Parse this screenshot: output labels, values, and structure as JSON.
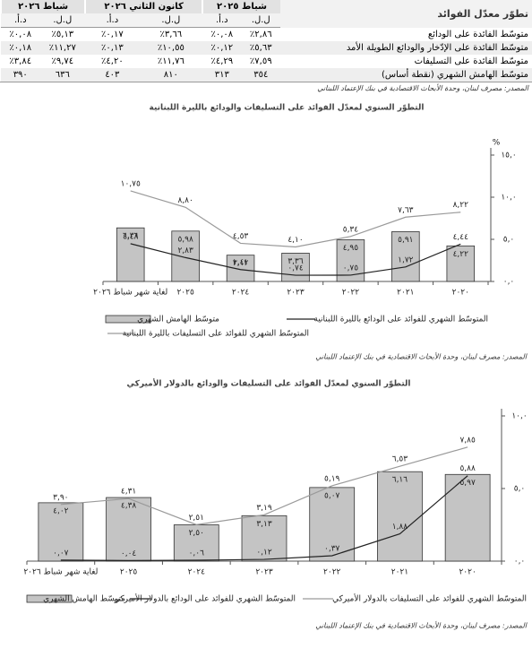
{
  "table": {
    "title": "تطوّر معدّل الفوائد",
    "periods": [
      "شباط ٢٠٢٥",
      "كانون الثاني ٢٠٢٦",
      "شباط ٢٠٢٦"
    ],
    "subheaders": [
      "ل.ل.",
      "د.أ.",
      "ل.ل.",
      "د.أ.",
      "ل.ل.",
      "د.أ."
    ],
    "rows": [
      [
        "متوسّط الفائدة على الودائع",
        "٢,٨٦٪",
        "٠,٠٨٪",
        "٣,٦٦٪",
        "٠,١٧٪",
        "٥,١٣٪",
        "٠,٠٨٪"
      ],
      [
        "متوسّط الفائدة على الإدّخار والودائع الطويلة الأمد",
        "٥,٦٣٪",
        "٠,١٢٪",
        "١٠,٥٥٪",
        "٠,١٣٪",
        "١١,٢٧٪",
        "٠,١٨٪"
      ],
      [
        "متوسّط الفائدة على التسليفات",
        "٧,٥٩٪",
        "٤,٢٩٪",
        "١١,٧٦٪",
        "٤,٢٠٪",
        "٩,٧٤٪",
        "٣,٨٤٪"
      ],
      [
        "متوسّط الهامش الشهري (نقطة أساس)",
        "٣٥٤",
        "٣١٣",
        "٨١٠",
        "٤٠٣",
        "٦٣٦",
        "٣٩٠"
      ]
    ],
    "source": "المصدر: مصرف لبنان، وحدة الأبحاث الاقتصادية في بنك الإعتماد اللبناني"
  },
  "chart_data": [
    {
      "type": "combo",
      "title": "التطوّر السنوي لمعدّل الفوائد على التسليفات والودائع بالليرة اللبنانية",
      "y_label": "%",
      "categories": [
        "٢٠٢٠",
        "٢٠٢١",
        "٢٠٢٢",
        "٢٠٢٣",
        "٢٠٢٤",
        "٢٠٢٥",
        "لغاية شهر شباط ٢٠٢٦"
      ],
      "series": [
        {
          "name": "متوسّط الهامش الشهري",
          "type": "bar",
          "color": "#c4c4c4",
          "values": [
            4.22,
            5.91,
            4.95,
            3.36,
            3.12,
            5.98,
            6.36
          ],
          "value_labels": [
            "٤,٢٢",
            "٥,٩١",
            "٤,٩٥",
            "٣,٣٦",
            "٣,١٢",
            "٥,٩٨",
            "٦,٣٦"
          ]
        },
        {
          "name": "المتوسّط الشهري للفوائد على الودائع بالليرة اللبنانية",
          "type": "line",
          "color": "#222222",
          "values": [
            4.44,
            1.72,
            0.75,
            0.74,
            1.41,
            2.83,
            4.48
          ],
          "value_labels": [
            "٤,٤٤",
            "١,٧٢",
            "٠,٧٥",
            "٠,٧٤",
            "١,٤١",
            "٢,٨٣",
            "٤,٤٨"
          ]
        },
        {
          "name": "المتوسّط الشهري للفوائد على التسليفات بالليرة اللبنانية",
          "type": "line",
          "color": "#9a9a9a",
          "values": [
            8.22,
            7.63,
            5.34,
            4.1,
            4.53,
            8.8,
            10.75
          ],
          "value_labels": [
            "٨,٢٢",
            "٧,٦٣",
            "٥,٣٤",
            "٤,١٠",
            "٤,٥٣",
            "٨,٨٠",
            "١٠,٧٥"
          ]
        }
      ],
      "ylim": [
        0,
        15
      ],
      "yticks": [
        {
          "value": 0,
          "label": "٠,٠"
        },
        {
          "value": 5,
          "label": "٥,٠"
        },
        {
          "value": 10,
          "label": "١٠,٠"
        },
        {
          "value": 15,
          "label": "١٥,٠"
        }
      ],
      "grid": false,
      "source": "المصدر: مصرف لبنان، وحدة الأبحاث الاقتصادية في بنك الإعتماد اللبناني"
    },
    {
      "type": "combo",
      "title": "التطوّر السنوي لمعدّل الفوائد على التسليفات والودائع بالدولار الأميركي",
      "categories": [
        "٢٠٢٠",
        "٢٠٢١",
        "٢٠٢٢",
        "٢٠٢٣",
        "٢٠٢٤",
        "٢٠٢٥",
        "لغاية شهر شباط ٢٠٢٦"
      ],
      "series": [
        {
          "name": "متوسّط الهامش الشهري",
          "type": "bar",
          "color": "#c4c4c4",
          "values": [
            5.97,
            6.16,
            5.07,
            3.13,
            2.5,
            4.38,
            4.02
          ],
          "value_labels": [
            "٥,٩٧",
            "٦,١٦",
            "٥,٠٧",
            "٣,١٣",
            "٢,٥٠",
            "٤,٣٨",
            "٤,٠٢"
          ]
        },
        {
          "name": "المتوسّط الشهري للفوائد على الودائع بالدولار الأميركي",
          "type": "line",
          "color": "#222222",
          "values": [
            5.88,
            1.88,
            0.37,
            0.12,
            0.06,
            0.04,
            0.07
          ],
          "value_labels": [
            "٥,٨٨",
            "١,٨٨",
            "٠,٣٧",
            "٠,١٢",
            "٠,٠٦",
            "٠,٠٤",
            "٠,٠٧"
          ]
        },
        {
          "name": "المتوسّط الشهري للفوائد على التسليفات بالدولار الأميركي",
          "type": "line",
          "color": "#9a9a9a",
          "values": [
            7.85,
            6.53,
            5.19,
            3.19,
            2.51,
            4.31,
            3.9
          ],
          "value_labels": [
            "٧,٨٥",
            "٦,٥٣",
            "٥,١٩",
            "٣,١٩",
            "٢,٥١",
            "٤,٣١",
            "٣,٩٠"
          ]
        }
      ],
      "ylim": [
        0,
        10
      ],
      "yticks": [
        {
          "value": 0,
          "label": "٠,٠"
        },
        {
          "value": 5,
          "label": "٥,٠"
        },
        {
          "value": 10,
          "label": "١٠,٠"
        }
      ],
      "grid": false,
      "source": "المصدر: مصرف لبنان، وحدة الأبحاث الاقتصادية في بنك الإعتماد اللبناني"
    }
  ]
}
